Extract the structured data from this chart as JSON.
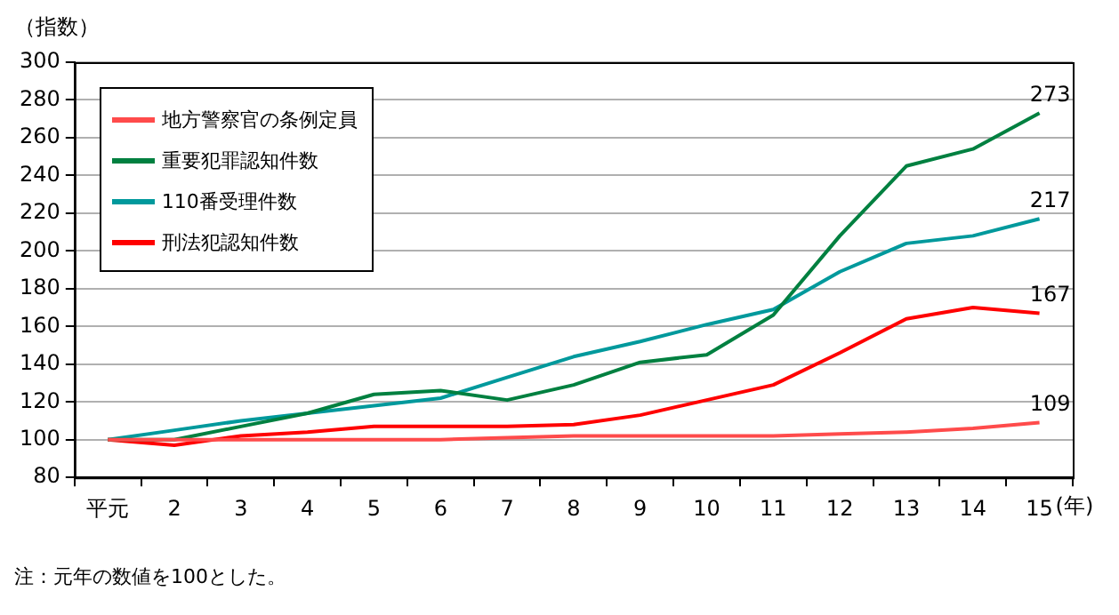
{
  "chart_data": {
    "type": "line",
    "ylabel": "（指数）",
    "xlabel": "(年)",
    "categories": [
      "平元",
      "2",
      "3",
      "4",
      "5",
      "6",
      "7",
      "8",
      "9",
      "10",
      "11",
      "12",
      "13",
      "14",
      "15"
    ],
    "series": [
      {
        "name": "地方警察官の条例定員",
        "color": "#ff4b4b",
        "values": [
          100,
          100,
          100,
          100,
          100,
          100,
          101,
          102,
          102,
          102,
          102,
          103,
          104,
          106,
          109
        ],
        "value_labels": [
          null,
          null,
          null,
          null,
          null,
          null,
          null,
          null,
          null,
          null,
          null,
          null,
          null,
          null,
          "109"
        ]
      },
      {
        "name": "重要犯罪認知件数",
        "color": "#008040",
        "values": [
          100,
          100,
          107,
          114,
          124,
          126,
          121,
          129,
          141,
          145,
          166,
          208,
          245,
          254,
          273
        ],
        "value_labels": [
          null,
          null,
          null,
          null,
          null,
          null,
          null,
          null,
          null,
          null,
          null,
          null,
          null,
          null,
          "273"
        ]
      },
      {
        "name": "110番受理件数",
        "color": "#00999c",
        "values": [
          100,
          105,
          110,
          114,
          118,
          122,
          133,
          144,
          152,
          161,
          169,
          189,
          204,
          208,
          217
        ],
        "value_labels": [
          null,
          null,
          null,
          null,
          null,
          null,
          null,
          null,
          null,
          null,
          null,
          null,
          null,
          null,
          "217"
        ]
      },
      {
        "name": "刑法犯認知件数",
        "color": "#ff0000",
        "values": [
          100,
          97,
          102,
          104,
          107,
          107,
          107,
          108,
          113,
          121,
          129,
          146,
          164,
          170,
          167
        ],
        "value_labels": [
          null,
          null,
          null,
          null,
          null,
          null,
          null,
          null,
          null,
          null,
          null,
          null,
          null,
          null,
          "167"
        ]
      }
    ],
    "ylim": [
      80,
      300
    ],
    "yticks": [
      80,
      100,
      120,
      140,
      160,
      180,
      200,
      220,
      240,
      260,
      280,
      300
    ],
    "grid": "y",
    "legend": "top left",
    "marker": "none",
    "line_style": "solid",
    "annotations": [
      "注：元年の数値を100とした。"
    ]
  }
}
